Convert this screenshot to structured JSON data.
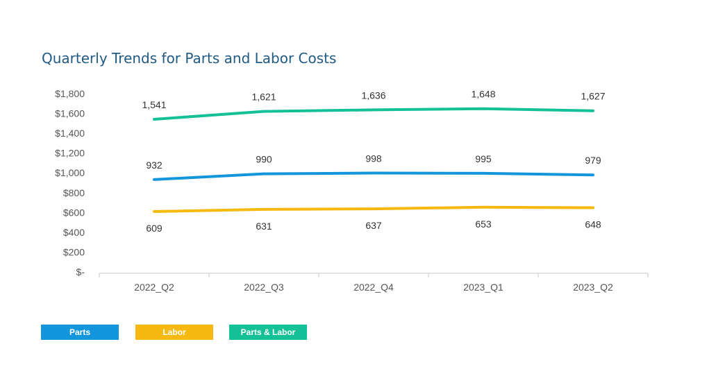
{
  "chart_data": {
    "type": "line",
    "title": "Quarterly Trends for Parts and Labor Costs",
    "categories": [
      "2022_Q2",
      "2022_Q3",
      "2022_Q4",
      "2023_Q1",
      "2023_Q2"
    ],
    "y_tick_labels": [
      "$-",
      "$200",
      "$400",
      "$600",
      "$800",
      "$1,000",
      "$1,200",
      "$1,400",
      "$1,600",
      "$1,800"
    ],
    "ylim": [
      0,
      1800
    ],
    "grid": false,
    "legend_position": "bottom-left",
    "series": [
      {
        "name": "Parts",
        "values": [
          932,
          990,
          998,
          995,
          979
        ],
        "labels": [
          "932",
          "990",
          "998",
          "995",
          "979"
        ],
        "color": "#1496dc",
        "label_side": "above"
      },
      {
        "name": "Labor",
        "values": [
          609,
          631,
          637,
          653,
          648
        ],
        "labels": [
          "609",
          "631",
          "637",
          "653",
          "648"
        ],
        "color": "#f6b90f",
        "label_side": "below"
      },
      {
        "name": "Parts & Labor",
        "values": [
          1541,
          1621,
          1636,
          1648,
          1627
        ],
        "labels": [
          "1,541",
          "1,621",
          "1,636",
          "1,648",
          "1,627"
        ],
        "color": "#14c196",
        "label_side": "above"
      }
    ]
  }
}
